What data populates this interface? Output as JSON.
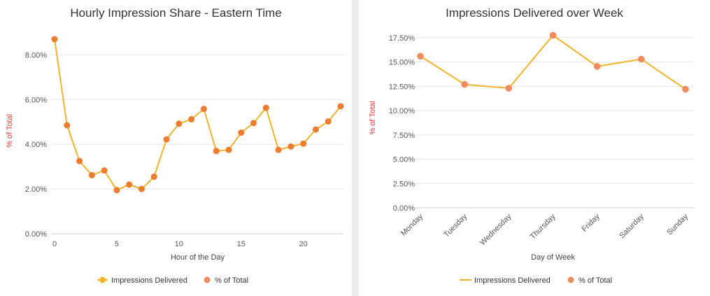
{
  "colors": {
    "line": "#f0b429",
    "dot": "#ee7b2f",
    "legend_dot_right": "#f28b60",
    "grid": "#e5e5e5",
    "axis_label": "#e53935",
    "tick": "#555555"
  },
  "chart_data": [
    {
      "type": "line",
      "title": "Hourly Impression Share - Eastern Time",
      "xlabel": "Hour of the Day",
      "ylabel": "% of Total",
      "x": [
        0,
        1,
        2,
        3,
        4,
        5,
        6,
        7,
        8,
        9,
        10,
        11,
        12,
        13,
        14,
        15,
        16,
        17,
        18,
        19,
        20,
        21,
        22,
        23
      ],
      "values": [
        8.7,
        4.85,
        3.25,
        2.62,
        2.83,
        1.95,
        2.2,
        2.0,
        2.55,
        4.22,
        4.92,
        5.12,
        5.58,
        3.7,
        3.75,
        4.52,
        4.95,
        5.63,
        3.75,
        3.9,
        4.03,
        4.66,
        5.02,
        5.7
      ],
      "xlim": [
        0,
        23
      ],
      "ylim": [
        0,
        9.2
      ],
      "x_ticks": [
        0,
        5,
        10,
        15,
        20
      ],
      "y_ticks": [
        0,
        2,
        4,
        6,
        8
      ],
      "y_tick_labels": [
        "0.00%",
        "2.00%",
        "4.00%",
        "6.00%",
        "8.00%"
      ],
      "legend": [
        "Impressions Delivered",
        "% of Total"
      ],
      "legend_position": "bottom"
    },
    {
      "type": "line",
      "title": "Impressions Delivered over Week",
      "xlabel": "Day of Week",
      "ylabel": "% of Total",
      "categories": [
        "Monday",
        "Tuesday",
        "Wednesday",
        "Thursday",
        "Friday",
        "Saturday",
        "Sunday"
      ],
      "values": [
        15.6,
        12.7,
        12.3,
        17.75,
        14.55,
        15.3,
        12.2
      ],
      "ylim": [
        0,
        18.5
      ],
      "y_ticks": [
        0,
        2.5,
        5,
        7.5,
        10,
        12.5,
        15,
        17.5
      ],
      "y_tick_labels": [
        "0.00%",
        "2.50%",
        "5.00%",
        "7.50%",
        "10.00%",
        "12.50%",
        "15.00%",
        "17.50%"
      ],
      "legend": [
        "Impressions Delivered",
        "% of Total"
      ],
      "legend_position": "bottom"
    }
  ]
}
